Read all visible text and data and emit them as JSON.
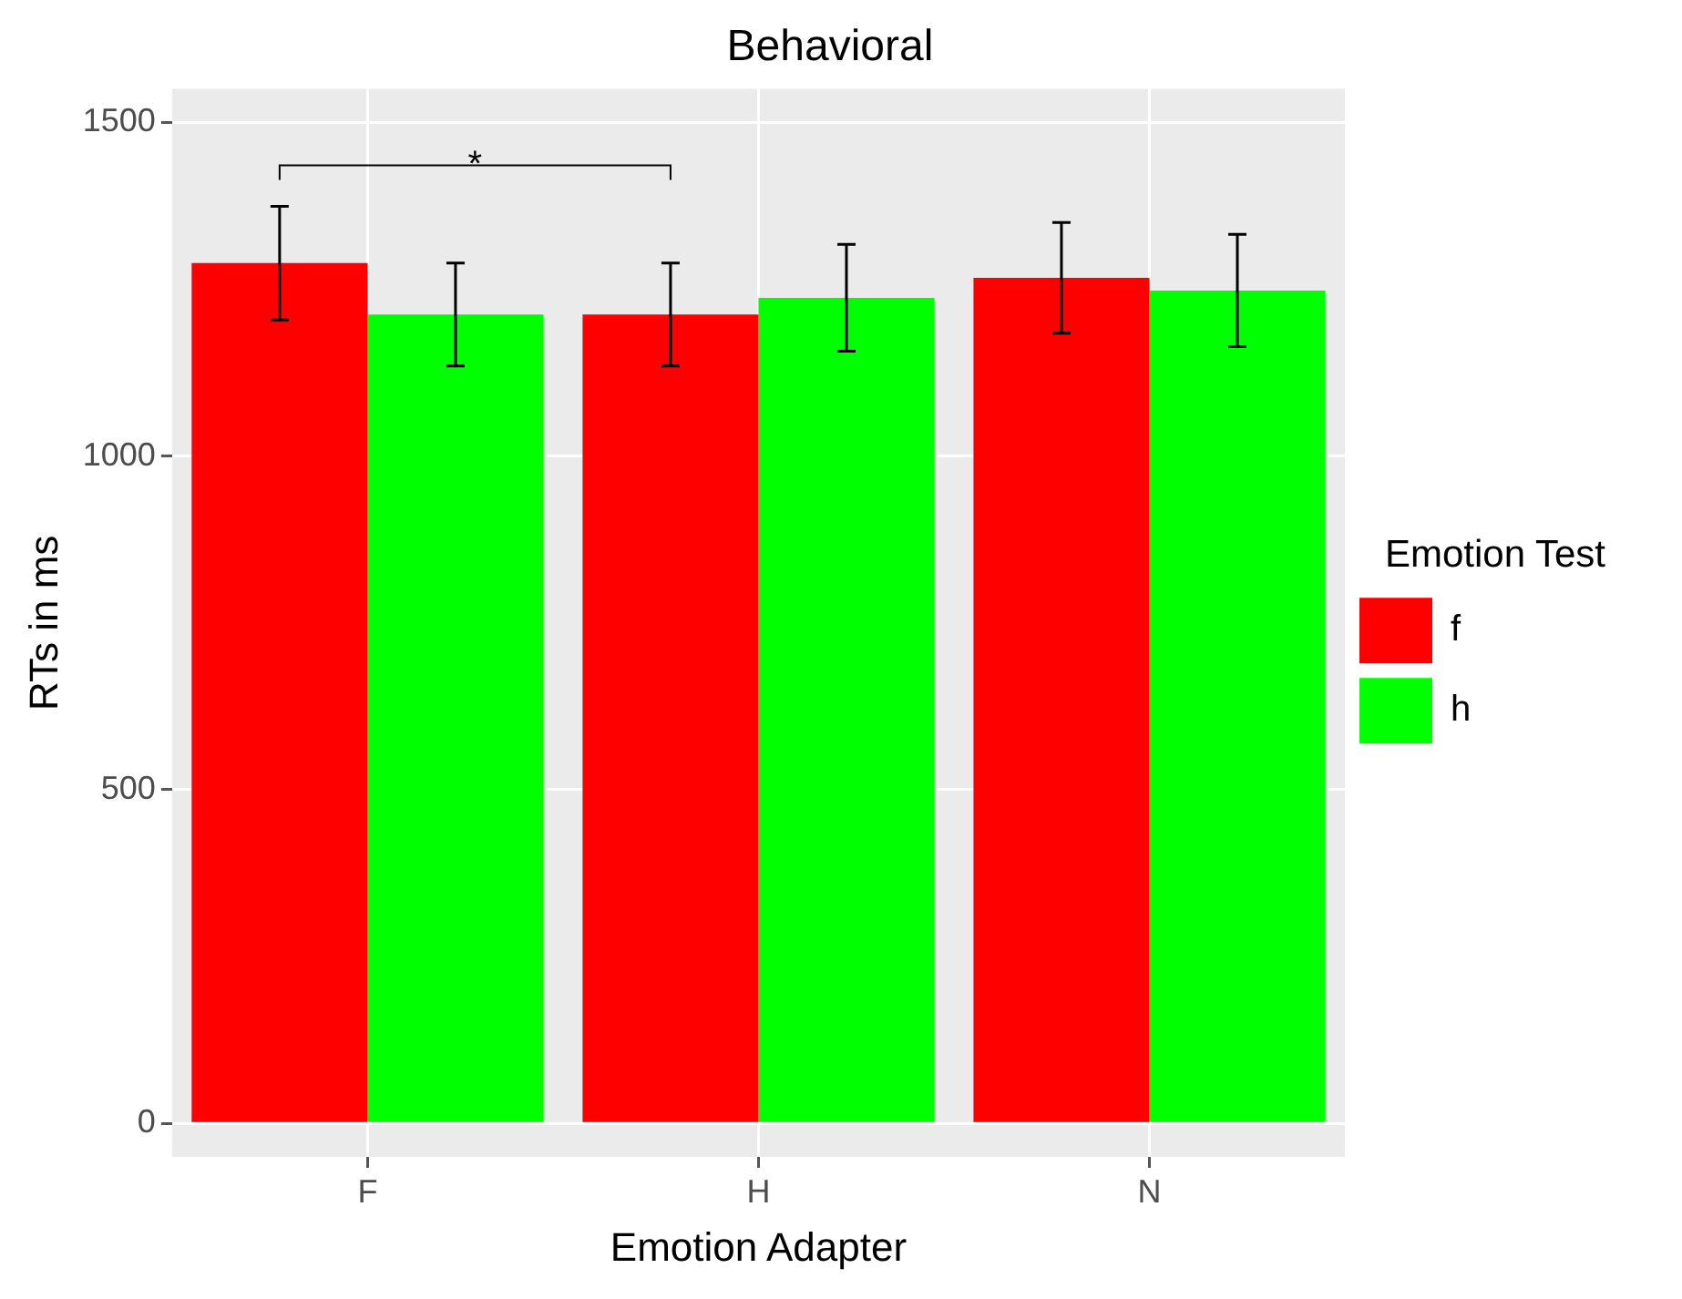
{
  "chart_data": {
    "type": "bar",
    "title": "Behavioral",
    "xlabel": "Emotion Adapter",
    "ylabel": "RTs in ms",
    "legend_title": "Emotion Test",
    "categories": [
      "F",
      "H",
      "N"
    ],
    "series": [
      {
        "name": "f",
        "color": "#ff0000",
        "values": [
          1289,
          1212,
          1267
        ],
        "errors": [
          85,
          77,
          83
        ]
      },
      {
        "name": "h",
        "color": "#00ff00",
        "values": [
          1212,
          1237,
          1248
        ],
        "errors": [
          77,
          80,
          84
        ]
      }
    ],
    "ylim": [
      -50,
      1550
    ],
    "yticks": [
      0,
      500,
      1000,
      1500
    ],
    "grid": true,
    "legend": "right",
    "annotations": [
      "*"
    ]
  }
}
